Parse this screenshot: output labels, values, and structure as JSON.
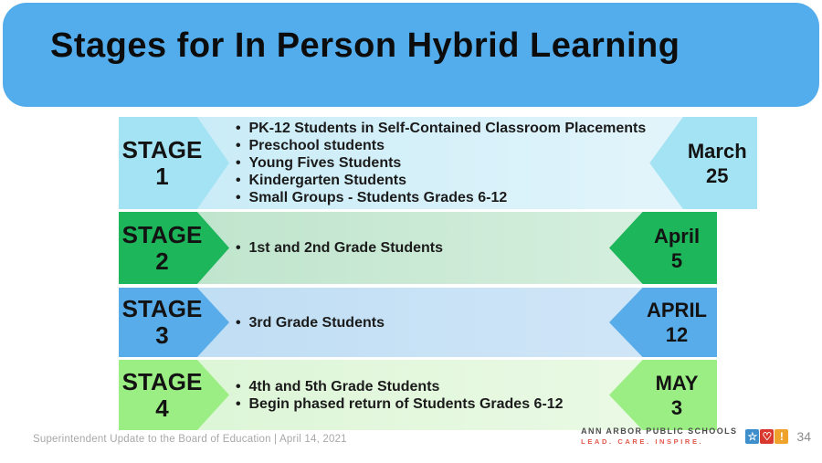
{
  "slide": {
    "title": "Stages for In Person Hybrid Learning"
  },
  "stages": [
    {
      "label": "STAGE",
      "number": "1",
      "bullets": [
        "PK-12 Students in Self-Contained Classroom Placements",
        "Preschool students",
        "Young Fives Students",
        "Kindergarten Students",
        "Small Groups - Students Grades 6-12"
      ],
      "date_line1": "March",
      "date_line2": "25",
      "colors": {
        "arrow": "#a4e3f3",
        "row_bg_left": "#c6ebf7",
        "row_bg_right": "#e4f5fb"
      }
    },
    {
      "label": "STAGE",
      "number": "2",
      "bullets": [
        "1st and 2nd Grade Students"
      ],
      "date_line1": "April",
      "date_line2": "5",
      "colors": {
        "arrow": "#1eb65a",
        "row_bg_left": "#bce3ca",
        "row_bg_right": "#d8f0e0"
      }
    },
    {
      "label": "STAGE",
      "number": "3",
      "bullets": [
        "3rd Grade Students"
      ],
      "date_line1": "APRIL",
      "date_line2": "12",
      "colors": {
        "arrow": "#58ace9",
        "row_bg_left": "#bddcf3",
        "row_bg_right": "#d2e7f8"
      }
    },
    {
      "label": "STAGE",
      "number": "4",
      "bullets": [
        "4th and 5th Grade Students",
        "Begin phased return of Students Grades 6-12"
      ],
      "date_line1": "MAY",
      "date_line2": "3",
      "colors": {
        "arrow": "#9bee83",
        "row_bg_left": "#dbf5d5",
        "row_bg_right": "#ecfae7"
      }
    }
  ],
  "footer": {
    "left_text": "Superintendent Update to the Board of Education  |  April 14, 2021",
    "org_name": "ANN ARBOR PUBLIC SCHOOLS",
    "org_tagline": "LEAD. CARE. INSPIRE.",
    "page_number": "34",
    "logo_icons": [
      {
        "name": "star-icon",
        "glyph": "☆",
        "bg": "#3e8ecc"
      },
      {
        "name": "heart-icon",
        "glyph": "♡",
        "bg": "#d8382e"
      },
      {
        "name": "exclamation-icon",
        "glyph": "!",
        "bg": "#f0a32a"
      }
    ]
  },
  "theme": {
    "header_bg": "#53adec"
  }
}
